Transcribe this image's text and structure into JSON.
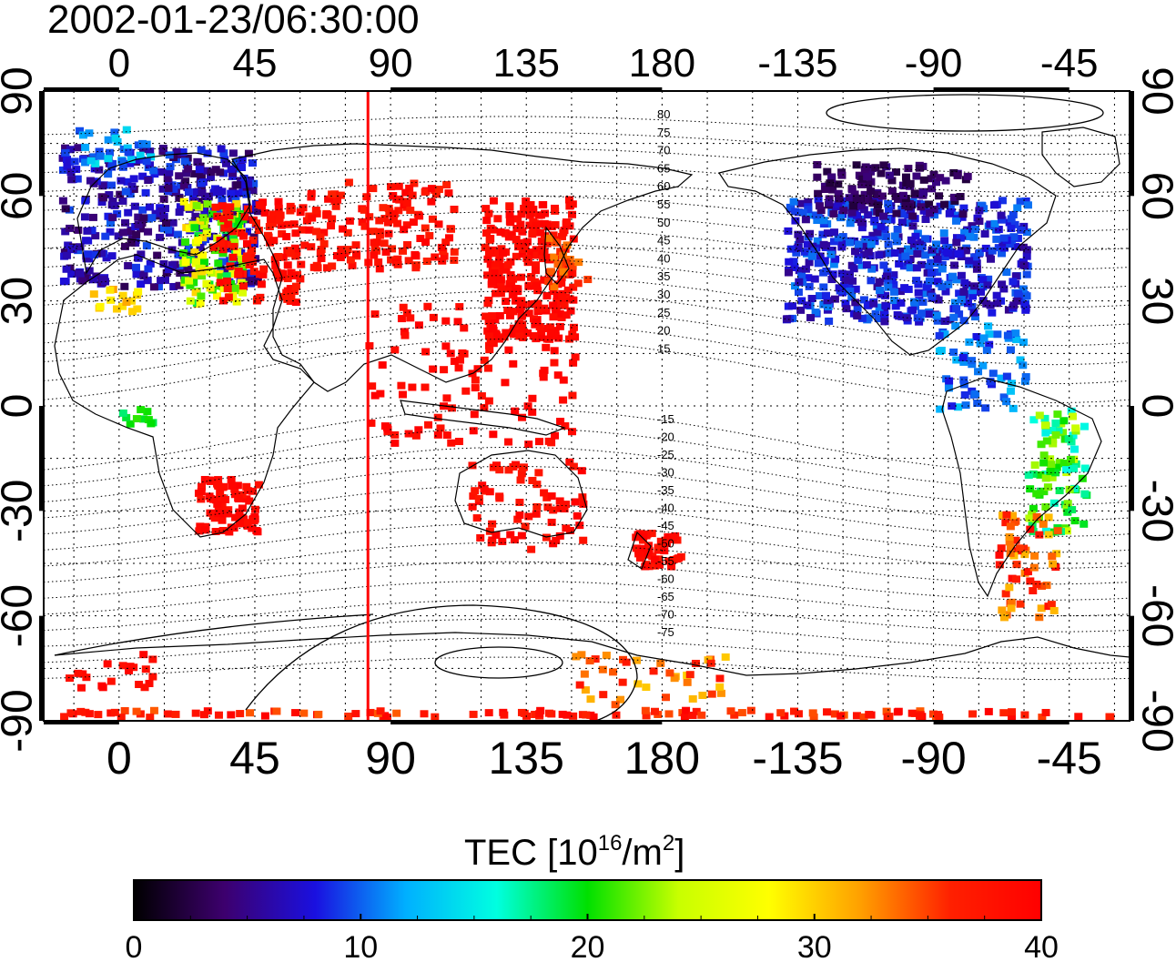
{
  "timestamp": "2002-01-23/06:30:00",
  "lon_ticks": [
    "0",
    "45",
    "90",
    "135",
    "180",
    "-135",
    "-90",
    "-45"
  ],
  "lat_ticks": [
    "90",
    "60",
    "30",
    "0",
    "-30",
    "-60",
    "-90"
  ],
  "mlat_labels_north": [
    "80",
    "75",
    "70",
    "65",
    "60",
    "55",
    "50",
    "45",
    "40",
    "35",
    "30",
    "25",
    "20",
    "15"
  ],
  "mlat_labels_south": [
    "-15",
    "-20",
    "-25",
    "-30",
    "-35",
    "-40",
    "-45",
    "-50",
    "-55",
    "-60",
    "-65",
    "-70",
    "-75"
  ],
  "colorbar": {
    "title_prefix": "TEC  [10",
    "title_exp1": "16",
    "title_mid": "/m",
    "title_exp2": "2",
    "title_suffix": "]",
    "ticks": [
      "0",
      "10",
      "20",
      "30",
      "40"
    ],
    "min": 0,
    "max": 40,
    "colors": [
      "#000000",
      "#3d006e",
      "#1a10e0",
      "#00b0ff",
      "#00ffe0",
      "#00e000",
      "#c8ff00",
      "#ffff00",
      "#ffa000",
      "#ff2000",
      "#ff0000"
    ]
  },
  "map": {
    "lon_range": [
      -25,
      335
    ],
    "lat_range": [
      -90,
      90
    ],
    "sunline_lon": 82.5,
    "colors": {
      "sunline": "#ff0000",
      "grid": "#000000",
      "coast": "#000000"
    }
  }
}
